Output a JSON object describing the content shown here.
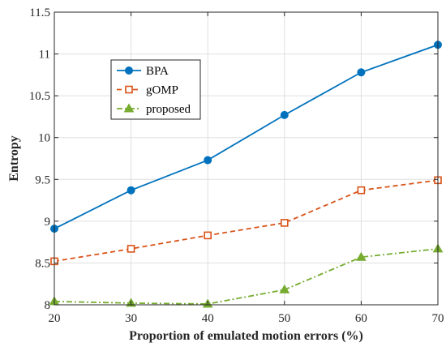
{
  "chart_data": {
    "type": "line",
    "title": "",
    "xlabel": "Proportion of emulated motion errors (%)",
    "ylabel": "Entropy",
    "x": [
      20,
      30,
      40,
      50,
      60,
      70
    ],
    "xlim": [
      20,
      70
    ],
    "ylim": [
      8,
      11.5
    ],
    "xticks": [
      "20",
      "30",
      "40",
      "50",
      "60",
      "70"
    ],
    "yticks": [
      "8",
      "8.5",
      "9",
      "9.5",
      "10",
      "10.5",
      "11",
      "11.5"
    ],
    "grid": true,
    "legend_position": "upper-left",
    "series": [
      {
        "name": "BPA",
        "values": [
          8.91,
          9.37,
          9.73,
          10.27,
          10.78,
          11.11
        ],
        "color": "#0072BD",
        "line": "solid",
        "marker": "circle"
      },
      {
        "name": "gOMP",
        "values": [
          8.52,
          8.67,
          8.83,
          8.98,
          9.37,
          9.49
        ],
        "color": "#D95319",
        "line": "dashed",
        "marker": "square"
      },
      {
        "name": "proposed",
        "values": [
          8.04,
          8.02,
          8.01,
          8.18,
          8.57,
          8.67
        ],
        "color": "#77AC30",
        "line": "dashdot",
        "marker": "triangle"
      }
    ]
  }
}
